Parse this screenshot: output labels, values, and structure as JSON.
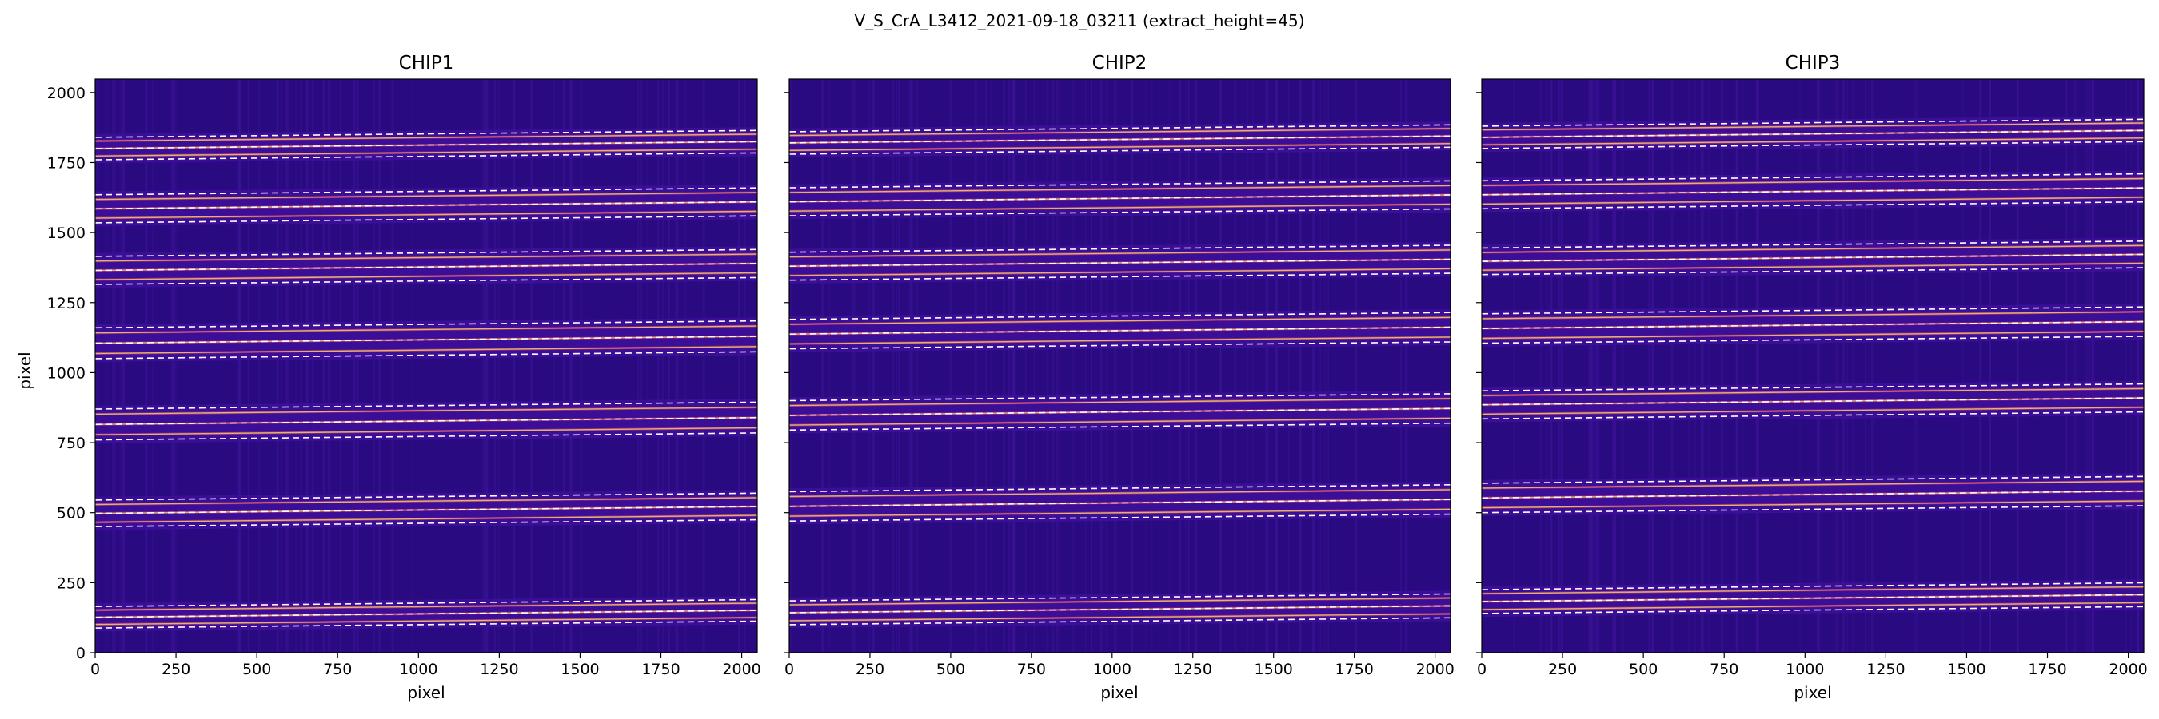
{
  "figure": {
    "suptitle": "V_S_CrA_L3412_2021-09-18_03211  (extract_height=45)"
  },
  "colors": {
    "background_low": "#2a0a80",
    "background_mid": "#3d0f9a",
    "order_mid": "#b8317a",
    "trace_bright": "#f7e46a",
    "trace_line": "#ffffff"
  },
  "chart_data": [
    {
      "type": "heatmap",
      "title": "CHIP1",
      "xlabel": "pixel",
      "ylabel": "pixel",
      "xlim": [
        0,
        2048
      ],
      "ylim": [
        0,
        2048
      ],
      "xticks": [
        0,
        250,
        500,
        750,
        1000,
        1250,
        1500,
        1750,
        2000
      ],
      "yticks": [
        0,
        250,
        500,
        750,
        1000,
        1250,
        1500,
        1750,
        2000
      ],
      "colormap": "plasma",
      "trace_pairs": [
        [
          88,
          165
        ],
        [
          450,
          545
        ],
        [
          760,
          870
        ],
        [
          1050,
          1160
        ],
        [
          1315,
          1415
        ],
        [
          1535,
          1635
        ],
        [
          1760,
          1840
        ]
      ],
      "trace_slope": 0.012,
      "trace_style": "dashed-white"
    },
    {
      "type": "heatmap",
      "title": "CHIP2",
      "xlabel": "pixel",
      "ylabel": "",
      "xlim": [
        0,
        2048
      ],
      "ylim": [
        0,
        2048
      ],
      "xticks": [
        0,
        250,
        500,
        750,
        1000,
        1250,
        1500,
        1750,
        2000
      ],
      "yticks": [
        0,
        250,
        500,
        750,
        1000,
        1250,
        1500,
        1750,
        2000
      ],
      "colormap": "plasma",
      "trace_pairs": [
        [
          100,
          185
        ],
        [
          470,
          575
        ],
        [
          795,
          900
        ],
        [
          1085,
          1190
        ],
        [
          1330,
          1430
        ],
        [
          1560,
          1660
        ],
        [
          1780,
          1860
        ]
      ],
      "trace_slope": 0.012,
      "trace_style": "dashed-white"
    },
    {
      "type": "heatmap",
      "title": "CHIP3",
      "xlabel": "pixel",
      "ylabel": "",
      "xlim": [
        0,
        2048
      ],
      "ylim": [
        0,
        2048
      ],
      "xticks": [
        0,
        250,
        500,
        750,
        1000,
        1250,
        1500,
        1750,
        2000
      ],
      "yticks": [
        0,
        250,
        500,
        750,
        1000,
        1250,
        1500,
        1750,
        2000
      ],
      "colormap": "plasma",
      "trace_pairs": [
        [
          140,
          225
        ],
        [
          500,
          605
        ],
        [
          835,
          935
        ],
        [
          1105,
          1210
        ],
        [
          1350,
          1445
        ],
        [
          1585,
          1685
        ],
        [
          1800,
          1880
        ]
      ],
      "trace_slope": 0.012,
      "trace_style": "dashed-white"
    }
  ]
}
